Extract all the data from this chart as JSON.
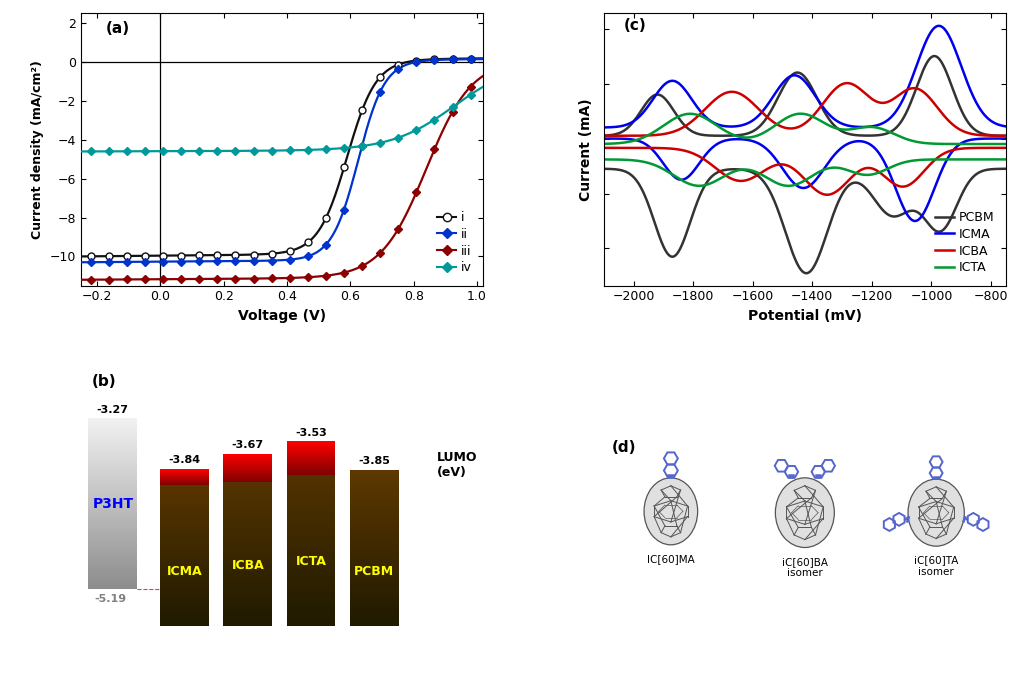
{
  "panel_a": {
    "title": "(a)",
    "xlabel": "Voltage (V)",
    "ylabel": "Current density (mA/cm²)",
    "xlim": [
      -0.25,
      1.02
    ],
    "ylim": [
      -11.5,
      2.5
    ],
    "xticks": [
      -0.2,
      0.0,
      0.2,
      0.4,
      0.6,
      0.8,
      1.0
    ],
    "yticks": [
      -10,
      -8,
      -6,
      -4,
      -2,
      0,
      2
    ],
    "curve_i": {
      "color": "#111111",
      "Jsc": -10.0,
      "Voc": 0.59,
      "slope": 22,
      "label": "i"
    },
    "curve_ii": {
      "color": "#0033cc",
      "Jsc": -10.3,
      "Voc": 0.625,
      "slope": 24,
      "label": "ii"
    },
    "curve_iii": {
      "color": "#8b0000",
      "Jsc": -11.2,
      "Voc": 0.84,
      "slope": 14,
      "label": "iii"
    },
    "curve_iv": {
      "color": "#009999",
      "Jsc": -4.6,
      "Voc": 0.93,
      "slope": 10,
      "label": "iv"
    }
  },
  "panel_b": {
    "title": "(b)",
    "bar_xlim": [
      0,
      7.0
    ],
    "bar_ylim": [
      -5.75,
      -2.7
    ],
    "bar_positions": [
      0.55,
      1.8,
      2.9,
      4.0,
      5.1
    ],
    "bar_width": 0.85,
    "bar_tops": [
      -3.27,
      -3.84,
      -3.67,
      -3.53,
      -3.85
    ],
    "bar_bottoms": [
      -5.19,
      -5.6,
      -5.6,
      -5.6,
      -5.6
    ],
    "bar_labels": [
      "P3HT",
      "ICMA",
      "ICBA",
      "ICTA",
      "PCBM"
    ],
    "top_labels": [
      "-3.27",
      "-3.84",
      "-3.67",
      "-3.53",
      "-3.85"
    ],
    "bottom_label": "-5.19",
    "lumo_x": 6.2,
    "lumo_y": -3.8
  },
  "panel_c": {
    "title": "(c)",
    "xlabel": "Potential (mV)",
    "ylabel": "Current (mA)",
    "xlim": [
      -2100,
      -750
    ],
    "xticks": [
      -2000,
      -1800,
      -1600,
      -1400,
      -1200,
      -1000,
      -800
    ],
    "colors": {
      "PCBM": "#333333",
      "ICMA": "#0000ee",
      "ICBA": "#cc0000",
      "ICTA": "#009933"
    }
  },
  "panel_d": {
    "title": "(d)",
    "mol_labels": [
      "IC[60]MA",
      "iC[60]BA\nisomer",
      "iC[60]TA\nisomer"
    ]
  }
}
